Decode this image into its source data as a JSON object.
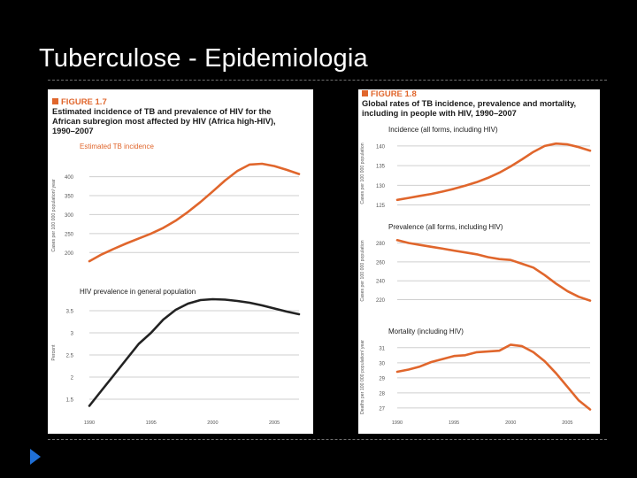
{
  "slide": {
    "title": "Tuberculose - Epidemiologia",
    "accent": "#e0662c",
    "nav_icon": "play-triangle-icon"
  },
  "chart_data": [
    {
      "type": "line",
      "figure_label": "FIGURE 1.7",
      "title_lines": [
        "Estimated incidence of TB and prevalence of HIV for the",
        "African subregion most affected by HIV (Africa high-HIV),",
        "1990–2007"
      ],
      "panels": [
        {
          "subtitle": "Estimated TB incidence",
          "ylabel": "Cases per 100 000 population/ year",
          "ylim": [
            175,
            420
          ],
          "yticks": [
            200,
            250,
            300,
            350,
            400
          ],
          "xlim": [
            1990,
            2007
          ],
          "color": "#e0662c",
          "x": [
            1990,
            1991,
            1992,
            1993,
            1994,
            1995,
            1996,
            1997,
            1998,
            1999,
            2000,
            2001,
            2002,
            2003,
            2004,
            2005,
            2006,
            2007
          ],
          "values": [
            177,
            195,
            210,
            224,
            237,
            250,
            265,
            284,
            307,
            333,
            361,
            390,
            415,
            432,
            434,
            428,
            418,
            407
          ]
        },
        {
          "subtitle": "HIV prevalence in general population",
          "ylabel": "Percent",
          "ylim": [
            1.2,
            3.9
          ],
          "yticks": [
            1.5,
            2.0,
            2.5,
            3.0,
            3.5
          ],
          "xlim": [
            1990,
            2007
          ],
          "xticks": [
            1990,
            1995,
            2000,
            2005
          ],
          "color": "#222222",
          "x": [
            1990,
            1991,
            1992,
            1993,
            1994,
            1995,
            1996,
            1997,
            1998,
            1999,
            2000,
            2001,
            2002,
            2003,
            2004,
            2005,
            2006,
            2007
          ],
          "values": [
            1.35,
            1.7,
            2.05,
            2.4,
            2.75,
            3.0,
            3.3,
            3.52,
            3.66,
            3.74,
            3.76,
            3.75,
            3.72,
            3.68,
            3.62,
            3.55,
            3.48,
            3.42
          ]
        }
      ]
    },
    {
      "type": "line",
      "figure_label": "FIGURE 1.8",
      "title_lines": [
        "Global rates of TB incidence, prevalence and mortality,",
        "including in people with HIV, 1990–2007"
      ],
      "panels": [
        {
          "subtitle": "Incidence (all forms, including HIV)",
          "ylabel": "Cases per 100 000 population",
          "ylim": [
            124,
            142
          ],
          "yticks": [
            125,
            130,
            135,
            140
          ],
          "xlim": [
            1990,
            2007
          ],
          "color": "#e0662c",
          "x": [
            1990,
            1991,
            1992,
            1993,
            1994,
            1995,
            1996,
            1997,
            1998,
            1999,
            2000,
            2001,
            2002,
            2003,
            2004,
            2005,
            2006,
            2007
          ],
          "values": [
            126.3,
            126.8,
            127.3,
            127.8,
            128.4,
            129.1,
            129.9,
            130.8,
            131.9,
            133.2,
            134.8,
            136.6,
            138.5,
            140.0,
            140.6,
            140.4,
            139.7,
            138.8
          ]
        },
        {
          "subtitle": "Prevalence (all forms, including HIV)",
          "ylabel": "Cases per 100 000 population",
          "ylim": [
            213,
            288
          ],
          "yticks": [
            220,
            240,
            260,
            280
          ],
          "xlim": [
            1990,
            2007
          ],
          "color": "#e0662c",
          "x": [
            1990,
            1991,
            1992,
            1993,
            1994,
            1995,
            1996,
            1997,
            1998,
            1999,
            2000,
            2001,
            2002,
            2003,
            2004,
            2005,
            2006,
            2007
          ],
          "values": [
            283,
            280,
            278,
            276,
            274,
            272,
            270,
            268,
            265,
            263,
            262,
            258,
            254,
            246,
            237,
            229,
            223,
            219
          ]
        },
        {
          "subtitle": "Mortality (including HIV)",
          "ylabel": "Deaths per 100 000 population/ year",
          "ylim": [
            26.7,
            31.4
          ],
          "yticks": [
            27,
            28,
            29,
            30,
            31
          ],
          "xlim": [
            1990,
            2007
          ],
          "xticks": [
            1990,
            1995,
            2000,
            2005
          ],
          "color": "#e0662c",
          "x": [
            1990,
            1991,
            1992,
            1993,
            1994,
            1995,
            1996,
            1997,
            1998,
            1999,
            2000,
            2001,
            2002,
            2003,
            2004,
            2005,
            2006,
            2007
          ],
          "values": [
            29.4,
            29.55,
            29.75,
            30.05,
            30.25,
            30.45,
            30.5,
            30.7,
            30.75,
            30.8,
            31.2,
            31.1,
            30.7,
            30.1,
            29.3,
            28.4,
            27.5,
            26.9
          ]
        }
      ]
    }
  ]
}
